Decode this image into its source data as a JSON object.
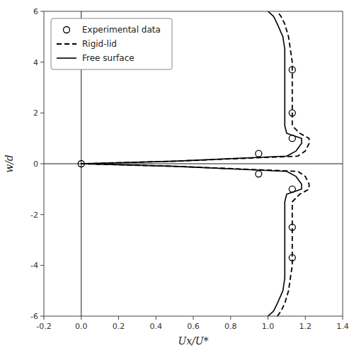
{
  "chart_data": {
    "type": "line",
    "title": "",
    "xlabel": "Ux/U*",
    "ylabel": "w/d",
    "xlim": [
      -0.2,
      1.4
    ],
    "ylim": [
      -6,
      6
    ],
    "xticks": [
      -0.2,
      {
        "value": 0.0,
        "label": "0.0"
      },
      0.2,
      0.4,
      0.6,
      0.8,
      {
        "value": 1.0,
        "label": "1.0"
      },
      1.2,
      1.4
    ],
    "yticks": [
      -6,
      -4,
      -2,
      0,
      2,
      4,
      6
    ],
    "grid": false,
    "legend": "upper-left",
    "series": [
      {
        "name": "Experimental data",
        "type": "scatter",
        "marker": "circle",
        "color": "#000000",
        "x": [
          0.0,
          0.95,
          1.13,
          1.13,
          1.13,
          0.95,
          1.13,
          1.13,
          1.13
        ],
        "values": [
          0.0,
          0.4,
          1.0,
          2.0,
          3.7,
          -0.4,
          -1.0,
          -2.5,
          -3.7
        ]
      },
      {
        "name": "Rigid-lid",
        "type": "line",
        "line_style": "dashed",
        "color": "#000000",
        "x": [
          1.05,
          1.07,
          1.09,
          1.11,
          1.12,
          1.13,
          1.13,
          1.13,
          1.13,
          1.13,
          1.17,
          1.22,
          1.22,
          1.2,
          1.16,
          0.5,
          0.0,
          0.5,
          1.16,
          1.2,
          1.22,
          1.22,
          1.17,
          1.13,
          1.13,
          1.13,
          1.13,
          1.13,
          1.12,
          1.11,
          1.09,
          1.07,
          1.05
        ],
        "values": [
          -6.0,
          -5.8,
          -5.5,
          -5.0,
          -4.5,
          -4.0,
          -3.5,
          -2.8,
          -2.0,
          -1.5,
          -1.2,
          -1.0,
          -0.8,
          -0.5,
          -0.3,
          -0.1,
          0.0,
          0.1,
          0.3,
          0.5,
          0.8,
          1.0,
          1.2,
          1.5,
          2.0,
          2.8,
          3.5,
          4.0,
          4.5,
          5.0,
          5.5,
          5.8,
          6.0
        ]
      },
      {
        "name": "Free surface",
        "type": "line",
        "line_style": "solid",
        "color": "#000000",
        "x": [
          1.0,
          1.03,
          1.05,
          1.08,
          1.09,
          1.09,
          1.09,
          1.09,
          1.09,
          1.09,
          1.1,
          1.18,
          1.18,
          1.15,
          1.1,
          0.5,
          0.0,
          0.5,
          1.1,
          1.15,
          1.18,
          1.18,
          1.1,
          1.09,
          1.09,
          1.09,
          1.09,
          1.09,
          1.09,
          1.08,
          1.05,
          1.03,
          1.0
        ],
        "values": [
          -6.0,
          -5.8,
          -5.5,
          -5.0,
          -4.5,
          -4.0,
          -3.5,
          -2.8,
          -2.0,
          -1.5,
          -1.2,
          -1.0,
          -0.8,
          -0.5,
          -0.3,
          -0.1,
          0.0,
          0.1,
          0.3,
          0.5,
          0.8,
          1.0,
          1.2,
          1.5,
          2.0,
          2.8,
          3.5,
          4.0,
          4.5,
          5.0,
          5.5,
          5.8,
          6.0
        ]
      }
    ]
  }
}
